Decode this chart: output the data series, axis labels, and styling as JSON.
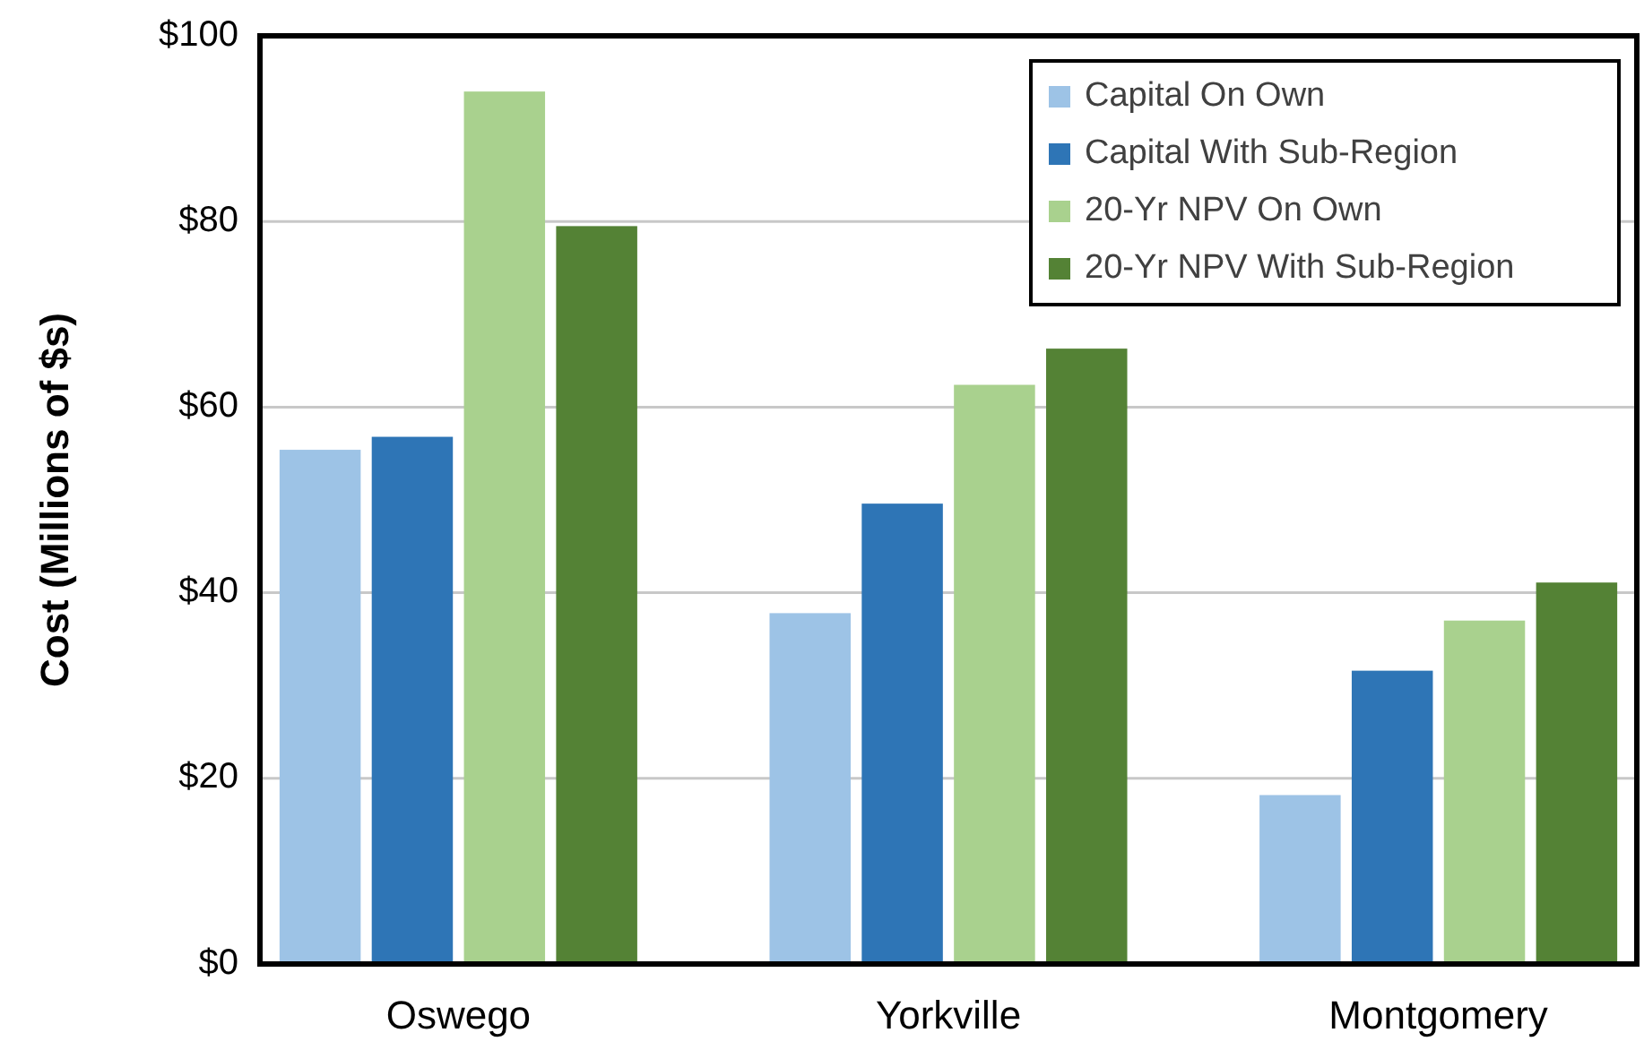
{
  "chart_data": {
    "type": "bar",
    "ylabel": "Cost (Millions of $s)",
    "categories": [
      "Oswego",
      "Yorkville",
      "Montgomery"
    ],
    "series": [
      {
        "name": "Capital On Own",
        "color": "#9dc3e6",
        "values": [
          55.4,
          37.8,
          18.2
        ]
      },
      {
        "name": "Capital With Sub-Region",
        "color": "#2e75b6",
        "values": [
          56.8,
          49.6,
          31.6
        ]
      },
      {
        "name": "20-Yr NPV On Own",
        "color": "#a9d18e",
        "values": [
          94.0,
          62.4,
          37.0
        ]
      },
      {
        "name": "20-Yr NPV With Sub-Region",
        "color": "#548235",
        "values": [
          79.5,
          66.3,
          41.1
        ]
      }
    ],
    "ylim": [
      0,
      100
    ],
    "yticks": [
      {
        "value": 0,
        "label": "$0"
      },
      {
        "value": 20,
        "label": "$20"
      },
      {
        "value": 40,
        "label": "$40"
      },
      {
        "value": 60,
        "label": "$60"
      },
      {
        "value": 80,
        "label": "$80"
      },
      {
        "value": 100,
        "label": "$100"
      }
    ],
    "grid": "y",
    "legend": "top right"
  }
}
